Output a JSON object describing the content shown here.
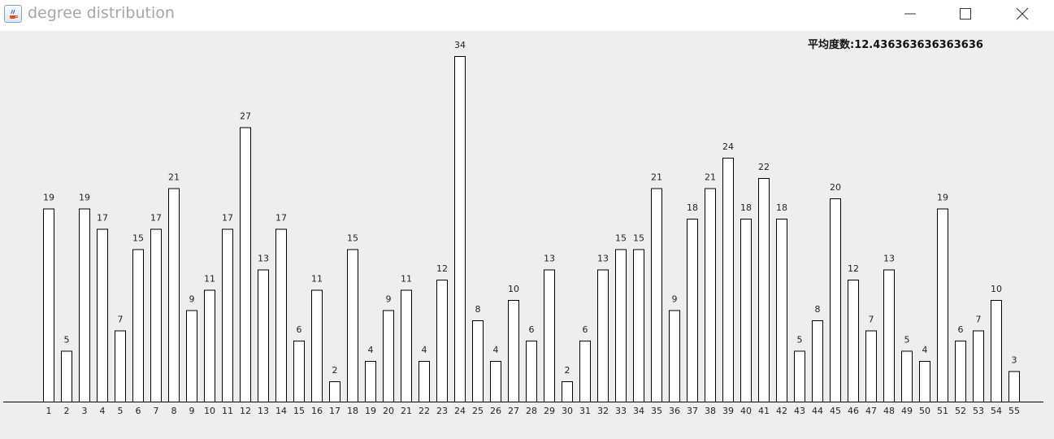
{
  "window": {
    "title": "degree distribution"
  },
  "header": {
    "average_label": "平均度数:12.436363636363636"
  },
  "chart_data": {
    "type": "bar",
    "title": "",
    "xlabel": "",
    "ylabel": "",
    "ylim": [
      0,
      34
    ],
    "grid": false,
    "categories": [
      "1",
      "2",
      "3",
      "4",
      "5",
      "6",
      "7",
      "8",
      "9",
      "10",
      "11",
      "12",
      "13",
      "14",
      "15",
      "16",
      "17",
      "18",
      "19",
      "20",
      "21",
      "22",
      "23",
      "24",
      "25",
      "26",
      "27",
      "28",
      "29",
      "30",
      "31",
      "32",
      "33",
      "34",
      "35",
      "36",
      "37",
      "38",
      "39",
      "40",
      "41",
      "42",
      "43",
      "44",
      "45",
      "46",
      "47",
      "48",
      "49",
      "50",
      "51",
      "52",
      "53",
      "54",
      "55"
    ],
    "values": [
      19,
      5,
      19,
      17,
      7,
      15,
      17,
      21,
      9,
      11,
      17,
      27,
      13,
      17,
      6,
      11,
      2,
      15,
      4,
      9,
      11,
      4,
      12,
      34,
      8,
      4,
      10,
      6,
      13,
      2,
      6,
      13,
      15,
      15,
      21,
      9,
      18,
      21,
      24,
      18,
      22,
      18,
      5,
      8,
      20,
      12,
      7,
      13,
      5,
      4,
      19,
      6,
      7,
      10,
      3
    ],
    "bar_fill": "#ffffff",
    "bar_stroke": "#000000"
  }
}
